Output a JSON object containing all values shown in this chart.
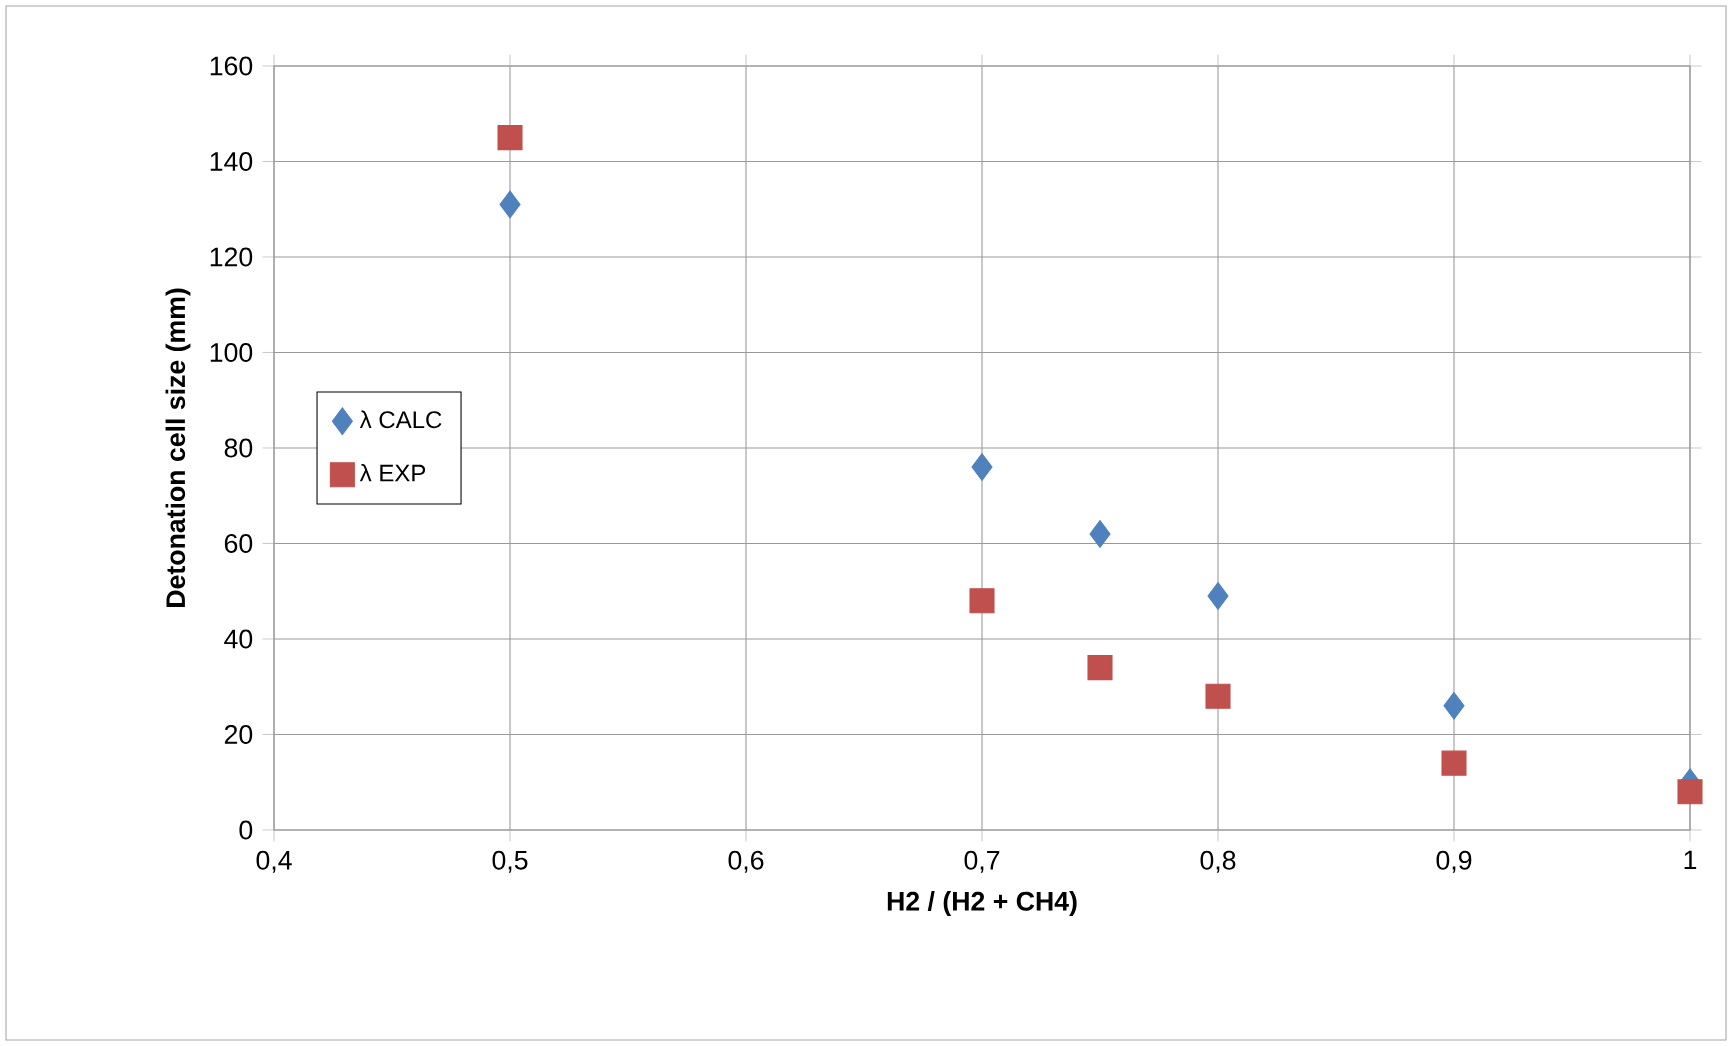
{
  "chart_data": {
    "type": "scatter",
    "xlabel": "H2 / (H2 + CH4)",
    "ylabel": "Detonation cell size (mm)",
    "xlim": [
      0.4,
      1
    ],
    "ylim": [
      0,
      160
    ],
    "xticks": [
      {
        "value": 0.4,
        "label": "0,4"
      },
      {
        "value": 0.5,
        "label": "0,5"
      },
      {
        "value": 0.6,
        "label": "0,6"
      },
      {
        "value": 0.7,
        "label": "0,7"
      },
      {
        "value": 0.8,
        "label": "0,8"
      },
      {
        "value": 0.9,
        "label": "0,9"
      },
      1
    ],
    "yticks": [
      0,
      20,
      40,
      60,
      80,
      100,
      120,
      140,
      160
    ],
    "grid": true,
    "legend": "left",
    "x": [
      0.5,
      0.7,
      0.75,
      0.8,
      0.9,
      1
    ],
    "series": [
      {
        "name": "λ CALC",
        "color": "#4f81bd",
        "marker": "diamond",
        "values": [
          131,
          76,
          62,
          49,
          26,
          10
        ]
      },
      {
        "name": "λ EXP",
        "color": "#c0504d",
        "marker": "square",
        "values": [
          145,
          48,
          34,
          28,
          14,
          8
        ]
      }
    ]
  }
}
